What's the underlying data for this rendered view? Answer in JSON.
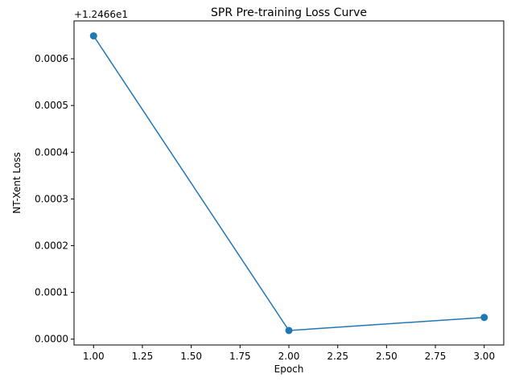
{
  "chart_data": {
    "type": "line",
    "title": "SPR Pre-training Loss Curve",
    "xlabel": "Epoch",
    "ylabel": "NT-Xent Loss",
    "y_offset_label": "+1.2466e1",
    "xlim": [
      0.9,
      3.1
    ],
    "ylim": [
      -1.25e-05,
      0.000681
    ],
    "x_ticks": [
      1.0,
      1.25,
      1.5,
      1.75,
      2.0,
      2.25,
      2.5,
      2.75,
      3.0
    ],
    "x_tick_labels": [
      "1.00",
      "1.25",
      "1.50",
      "1.75",
      "2.00",
      "2.25",
      "2.50",
      "2.75",
      "3.00"
    ],
    "y_ticks": [
      0.0,
      0.0001,
      0.0002,
      0.0003,
      0.0004,
      0.0005,
      0.0006
    ],
    "y_tick_labels": [
      "0.0000",
      "0.0001",
      "0.0002",
      "0.0003",
      "0.0004",
      "0.0005",
      "0.0006"
    ],
    "grid": false,
    "color": "#1f77b4",
    "series": [
      {
        "x": [
          1,
          2,
          3
        ],
        "y": [
          0.000649,
          1.85e-05,
          4.65e-05
        ]
      }
    ]
  }
}
